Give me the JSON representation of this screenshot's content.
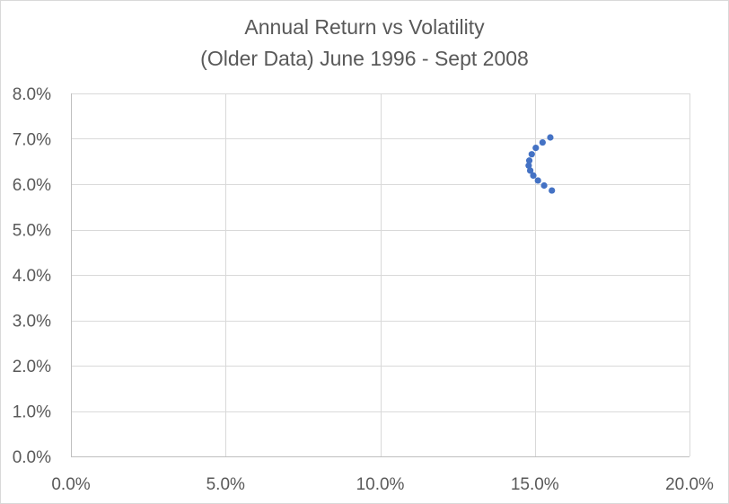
{
  "chart_data": {
    "type": "scatter",
    "title": [
      "Annual Return vs Volatility",
      "(Older Data) June 1996 - Sept 2008"
    ],
    "xlabel": "",
    "ylabel": "",
    "xlim": [
      0,
      0.2
    ],
    "ylim": [
      0,
      0.08
    ],
    "x_ticks": [
      0,
      0.05,
      0.1,
      0.15,
      0.2
    ],
    "y_ticks": [
      0,
      0.01,
      0.02,
      0.03,
      0.04,
      0.05,
      0.06,
      0.07,
      0.08
    ],
    "x_tick_labels": [
      "0.0%",
      "5.0%",
      "10.0%",
      "15.0%",
      "20.0%"
    ],
    "y_tick_labels": [
      "0.0%",
      "1.0%",
      "2.0%",
      "3.0%",
      "4.0%",
      "5.0%",
      "6.0%",
      "7.0%",
      "8.0%"
    ],
    "grid": "both",
    "legend": "none",
    "series": [
      {
        "marker_color": "#4472c4",
        "points": [
          {
            "x": 0.155,
            "y": 0.0703
          },
          {
            "x": 0.1525,
            "y": 0.0692
          },
          {
            "x": 0.1503,
            "y": 0.068
          },
          {
            "x": 0.149,
            "y": 0.0666
          },
          {
            "x": 0.1482,
            "y": 0.0652
          },
          {
            "x": 0.148,
            "y": 0.0641
          },
          {
            "x": 0.1485,
            "y": 0.063
          },
          {
            "x": 0.1495,
            "y": 0.0619
          },
          {
            "x": 0.151,
            "y": 0.0608
          },
          {
            "x": 0.153,
            "y": 0.0597
          },
          {
            "x": 0.1555,
            "y": 0.0586
          }
        ]
      }
    ]
  }
}
